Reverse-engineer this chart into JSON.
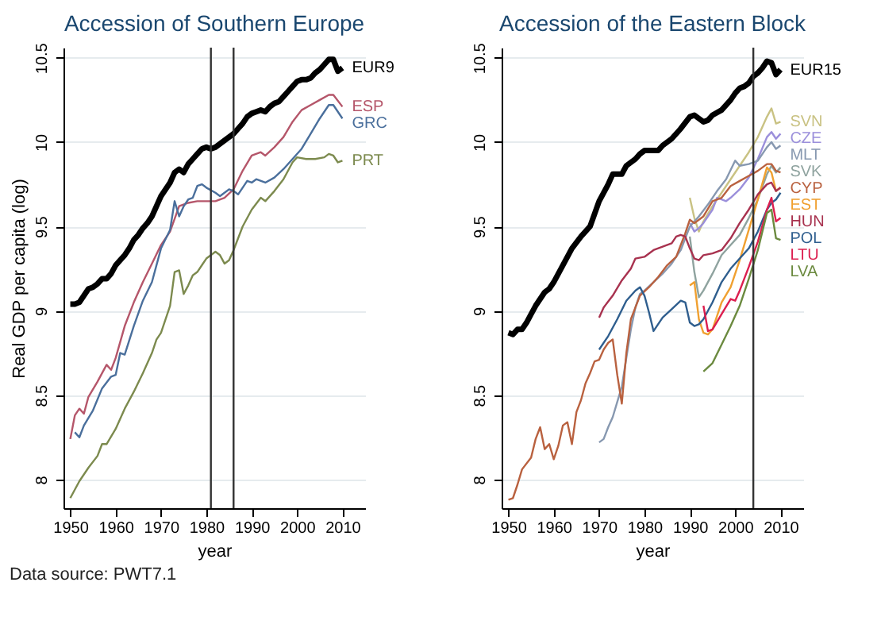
{
  "chart_data": [
    {
      "type": "line",
      "title": "Accession of Southern Europe",
      "xlabel": "year",
      "ylabel": "Real GDP per capita (log)",
      "xlim": [
        1948.5,
        2015
      ],
      "ylim": [
        7.83,
        10.56
      ],
      "xticks": [
        1950,
        1960,
        1970,
        1980,
        1990,
        2000,
        2010
      ],
      "yticks": [
        8,
        8.5,
        9,
        9.5,
        10,
        10.5
      ],
      "grid": "y",
      "ref_lines": [
        {
          "axis": "x",
          "value": 1981,
          "color": "#333333"
        },
        {
          "axis": "x",
          "value": 1986,
          "color": "#333333"
        }
      ],
      "annotations": [
        "Data source: PWT7.1"
      ],
      "series": [
        {
          "name": "EUR9",
          "color": "#000000",
          "x": [
            1950,
            1951,
            1952,
            1953,
            1954,
            1955,
            1956,
            1957,
            1958,
            1959,
            1960,
            1961,
            1962,
            1963,
            1964,
            1965,
            1966,
            1967,
            1968,
            1969,
            1970,
            1971,
            1972,
            1973,
            1974,
            1975,
            1976,
            1977,
            1978,
            1979,
            1980,
            1981,
            1982,
            1983,
            1984,
            1985,
            1986,
            1987,
            1988,
            1989,
            1990,
            1991,
            1992,
            1993,
            1994,
            1995,
            1996,
            1997,
            1998,
            1999,
            2000,
            2001,
            2002,
            2003,
            2004,
            2005,
            2006,
            2007,
            2008,
            2009,
            2010
          ],
          "values": [
            9.04,
            9.04,
            9.05,
            9.09,
            9.13,
            9.14,
            9.16,
            9.19,
            9.19,
            9.22,
            9.27,
            9.3,
            9.33,
            9.37,
            9.42,
            9.45,
            9.49,
            9.52,
            9.56,
            9.62,
            9.68,
            9.72,
            9.76,
            9.82,
            9.84,
            9.82,
            9.87,
            9.9,
            9.93,
            9.96,
            9.97,
            9.96,
            9.97,
            9.99,
            10.01,
            10.03,
            10.05,
            10.08,
            10.11,
            10.15,
            10.17,
            10.18,
            10.19,
            10.18,
            10.21,
            10.23,
            10.24,
            10.27,
            10.3,
            10.33,
            10.36,
            10.37,
            10.37,
            10.38,
            10.41,
            10.43,
            10.46,
            10.49,
            10.49,
            10.42,
            10.44
          ]
        },
        {
          "name": "ESP",
          "color": "#b5566a",
          "x": [
            1950,
            1951,
            1952,
            1953,
            1954,
            1956,
            1958,
            1959,
            1960,
            1962,
            1964,
            1966,
            1968,
            1970,
            1972,
            1974,
            1976,
            1978,
            1980,
            1982,
            1984,
            1986,
            1988,
            1990,
            1992,
            1993,
            1995,
            1997,
            1999,
            2001,
            2003,
            2005,
            2007,
            2008,
            2010
          ],
          "values": [
            8.24,
            8.38,
            8.42,
            8.39,
            8.49,
            8.58,
            8.68,
            8.65,
            8.72,
            8.91,
            9.05,
            9.17,
            9.28,
            9.39,
            9.47,
            9.62,
            9.64,
            9.65,
            9.65,
            9.65,
            9.67,
            9.72,
            9.83,
            9.92,
            9.94,
            9.92,
            9.97,
            10.03,
            10.12,
            10.19,
            10.22,
            10.25,
            10.28,
            10.28,
            10.21
          ]
        },
        {
          "name": "GRC",
          "color": "#4a6f9c",
          "x": [
            1951,
            1952,
            1953,
            1955,
            1957,
            1959,
            1960,
            1961,
            1962,
            1964,
            1966,
            1968,
            1970,
            1972,
            1973,
            1974,
            1975,
            1976,
            1977,
            1978,
            1979,
            1980,
            1982,
            1983,
            1985,
            1986,
            1987,
            1988,
            1989,
            1990,
            1991,
            1993,
            1995,
            1997,
            1999,
            2001,
            2003,
            2005,
            2007,
            2008,
            2010
          ],
          "values": [
            8.28,
            8.25,
            8.32,
            8.41,
            8.54,
            8.61,
            8.62,
            8.75,
            8.74,
            8.91,
            9.06,
            9.17,
            9.37,
            9.48,
            9.65,
            9.56,
            9.62,
            9.66,
            9.67,
            9.74,
            9.75,
            9.73,
            9.7,
            9.68,
            9.72,
            9.71,
            9.69,
            9.73,
            9.77,
            9.76,
            9.78,
            9.76,
            9.79,
            9.84,
            9.9,
            9.96,
            10.05,
            10.14,
            10.22,
            10.22,
            10.14
          ]
        },
        {
          "name": "PRT",
          "color": "#7c8a4e",
          "x": [
            1950,
            1952,
            1954,
            1956,
            1957,
            1958,
            1960,
            1962,
            1964,
            1966,
            1968,
            1969,
            1970,
            1972,
            1973,
            1974,
            1975,
            1976,
            1977,
            1978,
            1980,
            1982,
            1983,
            1984,
            1985,
            1986,
            1988,
            1990,
            1992,
            1993,
            1995,
            1997,
            1999,
            2000,
            2002,
            2004,
            2006,
            2007,
            2008,
            2009,
            2010
          ],
          "values": [
            7.89,
            7.99,
            8.07,
            8.14,
            8.21,
            8.21,
            8.3,
            8.42,
            8.52,
            8.63,
            8.75,
            8.83,
            8.87,
            9.03,
            9.23,
            9.24,
            9.1,
            9.15,
            9.21,
            9.23,
            9.31,
            9.35,
            9.33,
            9.28,
            9.3,
            9.36,
            9.5,
            9.6,
            9.67,
            9.65,
            9.71,
            9.78,
            9.88,
            9.91,
            9.9,
            9.9,
            9.91,
            9.93,
            9.92,
            9.88,
            9.89
          ]
        }
      ]
    },
    {
      "type": "line",
      "title": "Accession of the Eastern Block",
      "xlabel": "year",
      "xlim": [
        1948.5,
        2015
      ],
      "ylim": [
        7.83,
        10.56
      ],
      "xticks": [
        1950,
        1960,
        1970,
        1980,
        1990,
        2000,
        2010
      ],
      "yticks": [
        8,
        8.5,
        9,
        9.5,
        10,
        10.5
      ],
      "grid": "y",
      "ref_lines": [
        {
          "axis": "x",
          "value": 2004,
          "color": "#333333"
        }
      ],
      "series": [
        {
          "name": "EUR15",
          "color": "#000000",
          "x": [
            1950,
            1951,
            1952,
            1953,
            1954,
            1955,
            1956,
            1957,
            1958,
            1959,
            1960,
            1962,
            1964,
            1966,
            1968,
            1970,
            1972,
            1973,
            1975,
            1976,
            1978,
            1979,
            1980,
            1981,
            1982,
            1983,
            1984,
            1986,
            1988,
            1990,
            1991,
            1992,
            1993,
            1994,
            1995,
            1997,
            1999,
            2000,
            2001,
            2002,
            2003,
            2004,
            2005,
            2006,
            2007,
            2008,
            2009,
            2010
          ],
          "values": [
            8.87,
            8.86,
            8.89,
            8.89,
            8.93,
            8.98,
            9.03,
            9.07,
            9.11,
            9.13,
            9.17,
            9.27,
            9.37,
            9.44,
            9.5,
            9.65,
            9.75,
            9.81,
            9.81,
            9.86,
            9.9,
            9.93,
            9.95,
            9.95,
            9.95,
            9.95,
            9.98,
            10.02,
            10.08,
            10.15,
            10.16,
            10.14,
            10.12,
            10.13,
            10.16,
            10.19,
            10.25,
            10.29,
            10.32,
            10.33,
            10.35,
            10.39,
            10.41,
            10.44,
            10.48,
            10.47,
            10.4,
            10.43
          ]
        },
        {
          "name": "SVN",
          "color": "#c9c283",
          "x": [
            1990,
            1991,
            1992,
            1993,
            1995,
            1997,
            1999,
            2001,
            2003,
            2005,
            2007,
            2008,
            2009,
            2010
          ],
          "values": [
            9.67,
            9.55,
            9.47,
            9.53,
            9.62,
            9.7,
            9.78,
            9.86,
            9.94,
            10.03,
            10.15,
            10.2,
            10.11,
            10.12
          ]
        },
        {
          "name": "CZE",
          "color": "#9b8fdb",
          "x": [
            1990,
            1991,
            1992,
            1993,
            1995,
            1996,
            1997,
            1998,
            1999,
            2001,
            2003,
            2005,
            2007,
            2008,
            2009,
            2010
          ],
          "values": [
            9.52,
            9.47,
            9.49,
            9.52,
            9.6,
            9.67,
            9.66,
            9.65,
            9.67,
            9.72,
            9.79,
            9.9,
            10.03,
            10.06,
            10.02,
            10.05
          ]
        },
        {
          "name": "MLT",
          "color": "#8798b0",
          "x": [
            1970,
            1971,
            1972,
            1973,
            1974,
            1975,
            1976,
            1977,
            1978,
            1979,
            1980,
            1982,
            1984,
            1986,
            1988,
            1989,
            1990,
            1992,
            1994,
            1996,
            1998,
            2000,
            2001,
            2003,
            2005,
            2007,
            2008,
            2009,
            2010
          ],
          "values": [
            8.22,
            8.24,
            8.31,
            8.37,
            8.46,
            8.55,
            8.72,
            8.89,
            9.02,
            9.1,
            9.12,
            9.17,
            9.22,
            9.28,
            9.36,
            9.43,
            9.5,
            9.56,
            9.63,
            9.71,
            9.78,
            9.89,
            9.86,
            9.87,
            9.89,
            9.97,
            10,
            9.96,
            9.98
          ]
        },
        {
          "name": "SVK",
          "color": "#8fa39f",
          "x": [
            1990,
            1991,
            1992,
            1993,
            1995,
            1997,
            1999,
            2001,
            2003,
            2005,
            2007,
            2008,
            2009,
            2010
          ],
          "values": [
            9.44,
            9.23,
            9.08,
            9.12,
            9.22,
            9.33,
            9.39,
            9.45,
            9.55,
            9.66,
            9.81,
            9.86,
            9.82,
            9.85
          ]
        },
        {
          "name": "CYP",
          "color": "#b9613f",
          "x": [
            1950,
            1951,
            1952,
            1953,
            1955,
            1956,
            1957,
            1958,
            1959,
            1960,
            1961,
            1962,
            1963,
            1964,
            1965,
            1966,
            1967,
            1968,
            1969,
            1970,
            1971,
            1972,
            1973,
            1974,
            1975,
            1976,
            1977,
            1979,
            1981,
            1983,
            1985,
            1987,
            1989,
            1990,
            1991,
            1993,
            1995,
            1997,
            1999,
            2001,
            2003,
            2005,
            2007,
            2008,
            2009,
            2010
          ],
          "values": [
            7.88,
            7.89,
            7.97,
            8.06,
            8.13,
            8.24,
            8.31,
            8.18,
            8.21,
            8.12,
            8.2,
            8.32,
            8.34,
            8.21,
            8.4,
            8.47,
            8.57,
            8.63,
            8.7,
            8.71,
            8.77,
            8.81,
            8.83,
            8.62,
            8.45,
            8.75,
            8.95,
            9.09,
            9.14,
            9.2,
            9.27,
            9.32,
            9.46,
            9.54,
            9.52,
            9.56,
            9.65,
            9.67,
            9.74,
            9.77,
            9.8,
            9.83,
            9.87,
            9.87,
            9.83,
            9.82
          ]
        },
        {
          "name": "EST",
          "color": "#f0a030",
          "x": [
            1990,
            1991,
            1992,
            1993,
            1994,
            1995,
            1997,
            1999,
            2001,
            2003,
            2005,
            2007,
            2008,
            2009,
            2010
          ],
          "values": [
            9.15,
            9.17,
            8.95,
            8.87,
            8.86,
            8.89,
            9.05,
            9.14,
            9.3,
            9.48,
            9.66,
            9.85,
            9.82,
            9.71,
            9.73
          ]
        },
        {
          "name": "HUN",
          "color": "#a8324f",
          "x": [
            1970,
            1971,
            1973,
            1975,
            1977,
            1978,
            1980,
            1982,
            1984,
            1986,
            1987,
            1988,
            1989,
            1990,
            1991,
            1992,
            1993,
            1995,
            1997,
            1999,
            2001,
            2003,
            2005,
            2007,
            2008,
            2009,
            2010
          ],
          "values": [
            8.96,
            9.02,
            9.09,
            9.18,
            9.25,
            9.31,
            9.32,
            9.36,
            9.38,
            9.4,
            9.44,
            9.45,
            9.44,
            9.37,
            9.31,
            9.3,
            9.33,
            9.34,
            9.36,
            9.43,
            9.52,
            9.6,
            9.69,
            9.75,
            9.76,
            9.71,
            9.73
          ]
        },
        {
          "name": "POL",
          "color": "#2f5e8e",
          "x": [
            1970,
            1972,
            1974,
            1976,
            1978,
            1979,
            1980,
            1981,
            1982,
            1983,
            1984,
            1986,
            1988,
            1989,
            1990,
            1991,
            1992,
            1993,
            1995,
            1997,
            1999,
            2001,
            2003,
            2005,
            2007,
            2008,
            2009,
            2010
          ],
          "values": [
            8.77,
            8.85,
            8.95,
            9.06,
            9.12,
            9.14,
            9.09,
            8.99,
            8.88,
            8.92,
            8.96,
            9.01,
            9.06,
            9.05,
            8.93,
            8.91,
            8.92,
            8.95,
            9.05,
            9.17,
            9.25,
            9.31,
            9.37,
            9.47,
            9.6,
            9.64,
            9.66,
            9.7
          ]
        },
        {
          "name": "LTU",
          "color": "#dc1f4f",
          "x": [
            1993,
            1994,
            1995,
            1997,
            1999,
            2000,
            2001,
            2003,
            2005,
            2007,
            2008,
            2009,
            2010
          ],
          "values": [
            9.03,
            8.88,
            8.89,
            8.98,
            9.07,
            9.06,
            9.12,
            9.26,
            9.41,
            9.6,
            9.67,
            9.53,
            9.55
          ]
        },
        {
          "name": "LVA",
          "color": "#6b8a3f",
          "x": [
            1993,
            1995,
            1997,
            1999,
            2001,
            2003,
            2005,
            2007,
            2008,
            2009,
            2010
          ],
          "values": [
            8.64,
            8.69,
            8.8,
            8.91,
            9.03,
            9.19,
            9.36,
            9.58,
            9.6,
            9.43,
            9.42
          ]
        }
      ]
    }
  ]
}
